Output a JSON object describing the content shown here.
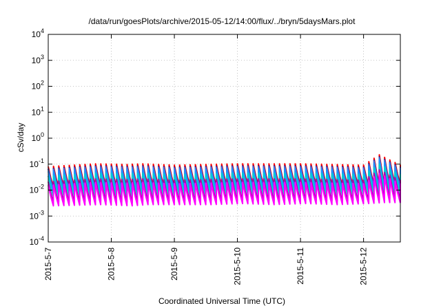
{
  "chart_data": {
    "type": "line",
    "title": "/data/run/goesPlots/archive/2015-05-12/14:00/flux/../bryn/5daysMars.plot",
    "xlabel": "Coordinated Universal Time (UTC)",
    "ylabel": "cSv/day",
    "yscale": "log",
    "ylim": [
      0.0001,
      10000
    ],
    "xlim": [
      "2015-05-07 00:00",
      "2015-05-12 14:00"
    ],
    "grid": true,
    "y_ticks": [
      {
        "base": "10",
        "exp": "-4"
      },
      {
        "base": "10",
        "exp": "-3"
      },
      {
        "base": "10",
        "exp": "-2"
      },
      {
        "base": "10",
        "exp": "-1"
      },
      {
        "base": "10",
        "exp": "0"
      },
      {
        "base": "10",
        "exp": "1"
      },
      {
        "base": "10",
        "exp": "2"
      },
      {
        "base": "10",
        "exp": "3"
      },
      {
        "base": "10",
        "exp": "4"
      }
    ],
    "x_ticks": [
      "2015-5-7",
      "2015-5-8",
      "2015-5-9",
      "2015-5-10",
      "2015-5-11",
      "2015-5-12"
    ],
    "series_colors": [
      "#ff0000",
      "#00008b",
      "#4a6bd6",
      "#1e90ff",
      "#00d0d0",
      "#b000b0",
      "#ff00ff"
    ],
    "series_level_factors": [
      1.15,
      0.95,
      0.9,
      0.75,
      0.5,
      0.3,
      0.22
    ],
    "orbit_period_hours": 2.0,
    "envelope": [
      {
        "t": "2015-05-07 00:00",
        "peak": 0.07,
        "trough": 0.0045
      },
      {
        "t": "2015-05-07 18:00",
        "peak": 0.09,
        "trough": 0.005
      },
      {
        "t": "2015-05-08 06:00",
        "peak": 0.085,
        "trough": 0.0045
      },
      {
        "t": "2015-05-08 12:00",
        "peak": 0.09,
        "trough": 0.005
      },
      {
        "t": "2015-05-09 00:00",
        "peak": 0.08,
        "trough": 0.005
      },
      {
        "t": "2015-05-09 12:00",
        "peak": 0.085,
        "trough": 0.005
      },
      {
        "t": "2015-05-10 00:00",
        "peak": 0.09,
        "trough": 0.0055
      },
      {
        "t": "2015-05-10 12:00",
        "peak": 0.09,
        "trough": 0.005
      },
      {
        "t": "2015-05-11 00:00",
        "peak": 0.09,
        "trough": 0.0055
      },
      {
        "t": "2015-05-11 12:00",
        "peak": 0.085,
        "trough": 0.005
      },
      {
        "t": "2015-05-12 00:00",
        "peak": 0.08,
        "trough": 0.0055
      },
      {
        "t": "2015-05-12 06:00",
        "peak": 0.2,
        "trough": 0.006
      },
      {
        "t": "2015-05-12 14:00",
        "peak": 0.08,
        "trough": 0.006
      }
    ]
  }
}
